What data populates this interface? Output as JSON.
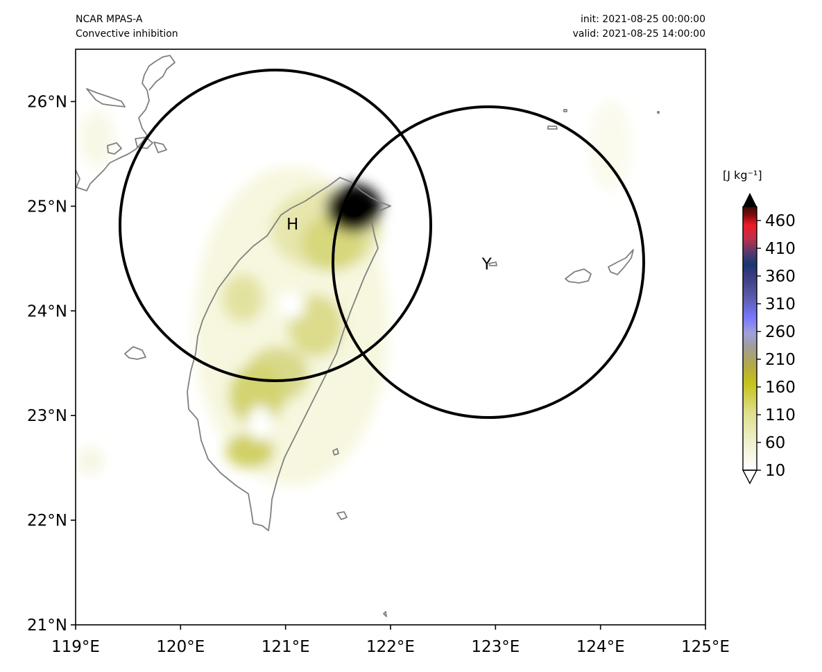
{
  "header": {
    "model": "NCAR MPAS-A",
    "field": "Convective inhibition",
    "init": "init: 2021-08-25 00:00:00",
    "valid": "valid: 2021-08-25 14:00:00"
  },
  "map": {
    "lon_range": [
      119,
      125
    ],
    "lat_range": [
      21,
      26.5
    ],
    "x_ticks": [
      "119°E",
      "120°E",
      "121°E",
      "122°E",
      "123°E",
      "124°E",
      "125°E"
    ],
    "y_ticks": [
      "21°N",
      "22°N",
      "23°N",
      "24°N",
      "25°N",
      "26°N"
    ],
    "coastline_color": "#7f7f7f",
    "field_color_low": "#fcfcef",
    "field_color_high": "#bdbd1a"
  },
  "centers": [
    {
      "label": "H",
      "lon": 121.0,
      "lat": 24.83
    },
    {
      "label": "Y",
      "lon": 122.95,
      "lat": 24.45
    }
  ],
  "colorbar": {
    "units": "[J kg⁻¹]",
    "ticks": [
      "10",
      "60",
      "110",
      "160",
      "210",
      "260",
      "310",
      "360",
      "410",
      "460"
    ],
    "extend": "both"
  }
}
